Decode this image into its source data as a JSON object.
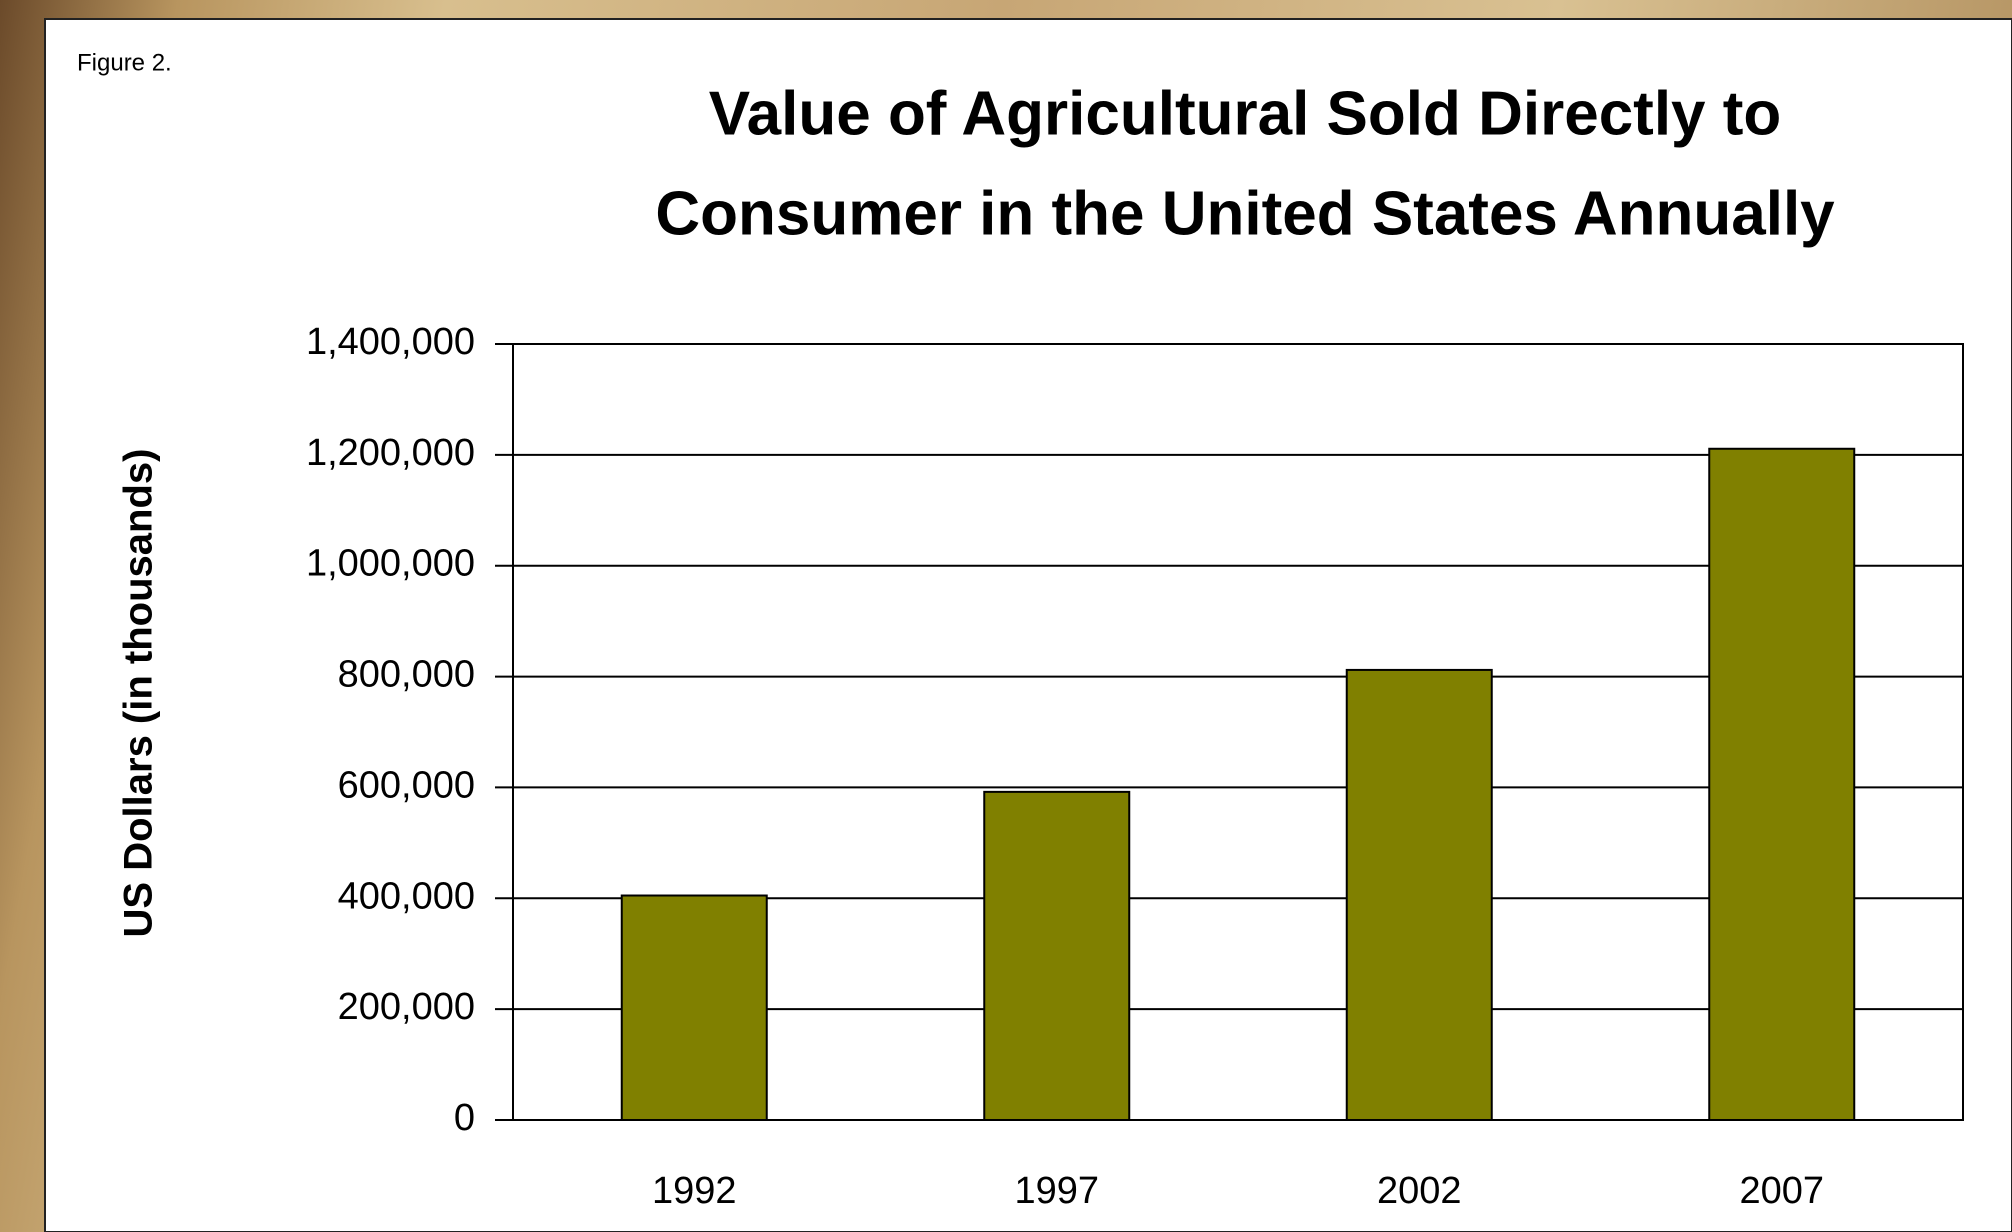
{
  "chart_data": {
    "type": "bar",
    "figure_label": "Figure 2.",
    "title": [
      "Value of Agricultural Sold Directly to",
      "Consumer in the United States Annually"
    ],
    "y_axis_label": "US Dollars (in thousands)",
    "categories": [
      "1992",
      "1997",
      "2002",
      "2007"
    ],
    "values": [
      405000,
      592000,
      812000,
      1211000
    ],
    "color": "#808000",
    "ylim": [
      0,
      1400000
    ],
    "yticks": [
      0,
      {
        "value": 200000,
        "label": "200,000"
      },
      {
        "value": 400000,
        "label": "400,000"
      },
      {
        "value": 600000,
        "label": "600,000"
      },
      {
        "value": 800000,
        "label": "800,000"
      },
      {
        "value": 1000000,
        "label": "1,000,000"
      },
      {
        "value": 1200000,
        "label": "1,200,000"
      },
      {
        "value": 1400000,
        "label": "1,400,000"
      }
    ],
    "grid": true
  }
}
